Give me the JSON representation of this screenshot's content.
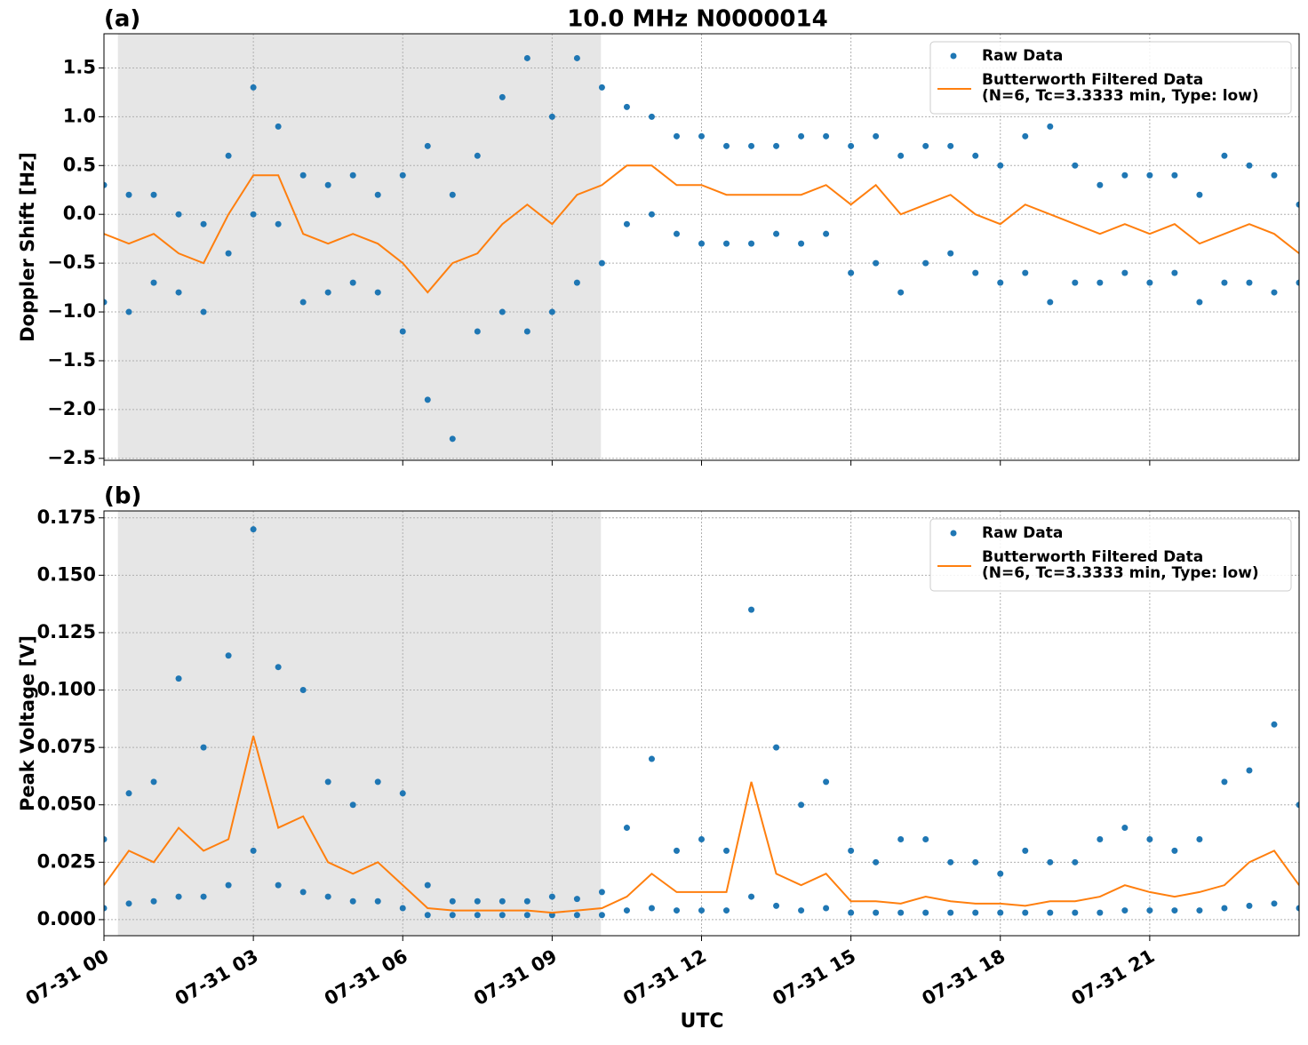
{
  "chart_data": [
    {
      "type": "scatter_line",
      "panel_label": "(a)",
      "title": "10.0 MHz N0000014",
      "y_label": "Doppler Shift [Hz]",
      "xlim": [
        0,
        24
      ],
      "ylim": [
        -2.52,
        1.85
      ],
      "yticks": [
        {
          "value": -2.5,
          "label": "−2.5"
        },
        {
          "value": -2.0,
          "label": "−2.0"
        },
        {
          "value": -1.5,
          "label": "−1.5"
        },
        {
          "value": -1.0,
          "label": "−1.0"
        },
        {
          "value": -0.5,
          "label": "−0.5"
        },
        {
          "value": 0,
          "label": "0.0"
        },
        0.5,
        {
          "value": 1.0,
          "label": "1.0"
        },
        1.5
      ],
      "grid": true,
      "legend": "upper right",
      "shaded_span": [
        0.28,
        9.98
      ],
      "shade_color": "#e6e6e6",
      "series": [
        {
          "name": "Raw Data",
          "kind": "scatter",
          "color": "#1f77b4",
          "x": [
            0,
            0.5,
            1,
            1.5,
            2,
            2.5,
            3,
            3.5,
            4,
            4.5,
            5,
            5.5,
            6,
            6.5,
            7,
            7.5,
            8,
            8.5,
            9,
            9.5,
            10,
            10.5,
            11,
            11.5,
            12,
            12.5,
            13,
            13.5,
            14,
            14.5,
            15,
            15.5,
            16,
            16.5,
            17,
            17.5,
            18,
            18.5,
            19,
            19.5,
            20,
            20.5,
            21,
            21.5,
            22,
            22.5,
            23,
            23.5,
            24,
            0,
            0.5,
            1,
            1.5,
            2,
            2.5,
            3,
            3.5,
            4,
            4.5,
            5,
            5.5,
            6,
            6.5,
            7,
            7.5,
            8,
            8.5,
            9,
            9.5,
            10,
            10.5,
            11,
            11.5,
            12,
            12.5,
            13,
            13.5,
            14,
            14.5,
            15,
            15.5,
            16,
            16.5,
            17,
            17.5,
            18,
            18.5,
            19,
            19.5,
            20,
            20.5,
            21,
            21.5,
            22,
            22.5,
            23,
            23.5,
            24
          ],
          "values": [
            0.3,
            0.2,
            0.2,
            0.0,
            -0.1,
            0.6,
            1.3,
            0.9,
            0.4,
            0.3,
            0.4,
            0.2,
            0.4,
            0.7,
            0.2,
            0.6,
            1.2,
            1.6,
            1.0,
            1.6,
            1.3,
            1.1,
            1.0,
            0.8,
            0.8,
            0.7,
            0.7,
            0.7,
            0.8,
            0.8,
            0.7,
            0.8,
            0.6,
            0.7,
            0.7,
            0.6,
            0.5,
            0.8,
            0.9,
            0.5,
            0.3,
            0.4,
            0.4,
            0.4,
            0.2,
            0.6,
            0.5,
            0.4,
            0.1,
            -0.9,
            -1.0,
            -0.7,
            -0.8,
            -1.0,
            -0.4,
            0.0,
            -0.1,
            -0.9,
            -0.8,
            -0.7,
            -0.8,
            -1.2,
            -1.9,
            -2.3,
            -1.2,
            -1.0,
            -1.2,
            -1.0,
            -0.7,
            -0.5,
            -0.1,
            0.0,
            -0.2,
            -0.3,
            -0.3,
            -0.3,
            -0.2,
            -0.3,
            -0.2,
            -0.6,
            -0.5,
            -0.8,
            -0.5,
            -0.4,
            -0.6,
            -0.7,
            -0.6,
            -0.9,
            -0.7,
            -0.7,
            -0.6,
            -0.7,
            -0.6,
            -0.9,
            -0.7,
            -0.7,
            -0.8,
            -0.7
          ]
        },
        {
          "name": "Butterworth Filtered Data\n(N=6, Tc=3.3333 min, Type: low)",
          "kind": "line",
          "color": "#ff7f0e",
          "x": [
            0,
            0.5,
            1,
            1.5,
            2,
            2.5,
            3,
            3.5,
            4,
            4.5,
            5,
            5.5,
            6,
            6.5,
            7,
            7.5,
            8,
            8.5,
            9,
            9.5,
            10,
            10.5,
            11,
            11.5,
            12,
            12.5,
            13,
            13.5,
            14,
            14.5,
            15,
            15.5,
            16,
            16.5,
            17,
            17.5,
            18,
            18.5,
            19,
            19.5,
            20,
            20.5,
            21,
            21.5,
            22,
            22.5,
            23,
            23.5,
            24
          ],
          "values": [
            -0.2,
            -0.3,
            -0.2,
            -0.4,
            -0.5,
            0.0,
            0.4,
            0.4,
            -0.2,
            -0.3,
            -0.2,
            -0.3,
            -0.5,
            -0.8,
            -0.5,
            -0.4,
            -0.1,
            0.1,
            -0.1,
            0.2,
            0.3,
            0.5,
            0.5,
            0.3,
            0.3,
            0.2,
            0.2,
            0.2,
            0.2,
            0.3,
            0.1,
            0.3,
            0.0,
            0.1,
            0.2,
            0.0,
            -0.1,
            0.1,
            0.0,
            -0.1,
            -0.2,
            -0.1,
            -0.2,
            -0.1,
            -0.3,
            -0.2,
            -0.1,
            -0.2,
            -0.4
          ]
        }
      ]
    },
    {
      "type": "scatter_line",
      "panel_label": "(b)",
      "y_label": "Peak Voltage [V]",
      "x_label": "UTC",
      "xlim": [
        0,
        24
      ],
      "ylim": [
        -0.007,
        0.178
      ],
      "xticks": [
        {
          "value": 0,
          "label": "07-31 00"
        },
        {
          "value": 3,
          "label": "07-31 03"
        },
        {
          "value": 6,
          "label": "07-31 06"
        },
        {
          "value": 9,
          "label": "07-31 09"
        },
        {
          "value": 12,
          "label": "07-31 12"
        },
        {
          "value": 15,
          "label": "07-31 15"
        },
        {
          "value": 18,
          "label": "07-31 18"
        },
        {
          "value": 21,
          "label": "07-31 21"
        }
      ],
      "yticks": [
        {
          "value": 0,
          "label": "0.000"
        },
        0.025,
        {
          "value": 0.05,
          "label": "0.050"
        },
        0.075,
        {
          "value": 0.1,
          "label": "0.100"
        },
        0.125,
        {
          "value": 0.15,
          "label": "0.150"
        },
        0.175
      ],
      "grid": true,
      "legend": "upper right",
      "shaded_span": [
        0.28,
        9.98
      ],
      "shade_color": "#e6e6e6",
      "series": [
        {
          "name": "Raw Data",
          "kind": "scatter",
          "color": "#1f77b4",
          "x": [
            0,
            0.5,
            1,
            1.5,
            2,
            2.5,
            3,
            3.5,
            4,
            4.5,
            5,
            5.5,
            6,
            6.5,
            7,
            7.5,
            8,
            8.5,
            9,
            9.5,
            10,
            10.5,
            11,
            11.5,
            12,
            12.5,
            13,
            13.5,
            14,
            14.5,
            15,
            15.5,
            16,
            16.5,
            17,
            17.5,
            18,
            18.5,
            19,
            19.5,
            20,
            20.5,
            21,
            21.5,
            22,
            22.5,
            23,
            23.5,
            24,
            0,
            0.5,
            1,
            1.5,
            2,
            2.5,
            3,
            3.5,
            4,
            4.5,
            5,
            5.5,
            6,
            6.5,
            7,
            7.5,
            8,
            8.5,
            9,
            9.5,
            10,
            10.5,
            11,
            11.5,
            12,
            12.5,
            13,
            13.5,
            14,
            14.5,
            15,
            15.5,
            16,
            16.5,
            17,
            17.5,
            18,
            18.5,
            19,
            19.5,
            20,
            20.5,
            21,
            21.5,
            22,
            22.5,
            23,
            23.5,
            24
          ],
          "values": [
            0.035,
            0.055,
            0.06,
            0.105,
            0.075,
            0.115,
            0.17,
            0.11,
            0.1,
            0.06,
            0.05,
            0.06,
            0.055,
            0.015,
            0.008,
            0.008,
            0.008,
            0.008,
            0.01,
            0.009,
            0.012,
            0.04,
            0.07,
            0.03,
            0.035,
            0.03,
            0.135,
            0.075,
            0.05,
            0.06,
            0.03,
            0.025,
            0.035,
            0.035,
            0.025,
            0.025,
            0.02,
            0.03,
            0.025,
            0.025,
            0.035,
            0.04,
            0.035,
            0.03,
            0.035,
            0.06,
            0.065,
            0.085,
            0.05,
            0.005,
            0.007,
            0.008,
            0.01,
            0.01,
            0.015,
            0.03,
            0.015,
            0.012,
            0.01,
            0.008,
            0.008,
            0.005,
            0.002,
            0.002,
            0.002,
            0.002,
            0.002,
            0.002,
            0.002,
            0.002,
            0.004,
            0.005,
            0.004,
            0.004,
            0.004,
            0.01,
            0.006,
            0.004,
            0.005,
            0.003,
            0.003,
            0.003,
            0.003,
            0.003,
            0.003,
            0.003,
            0.003,
            0.003,
            0.003,
            0.003,
            0.004,
            0.004,
            0.004,
            0.004,
            0.005,
            0.006,
            0.007,
            0.005
          ]
        },
        {
          "name": "Butterworth Filtered Data\n(N=6, Tc=3.3333 min, Type: low)",
          "kind": "line",
          "color": "#ff7f0e",
          "x": [
            0,
            0.5,
            1,
            1.5,
            2,
            2.5,
            3,
            3.5,
            4,
            4.5,
            5,
            5.5,
            6,
            6.5,
            7,
            7.5,
            8,
            8.5,
            9,
            9.5,
            10,
            10.5,
            11,
            11.5,
            12,
            12.5,
            13,
            13.5,
            14,
            14.5,
            15,
            15.5,
            16,
            16.5,
            17,
            17.5,
            18,
            18.5,
            19,
            19.5,
            20,
            20.5,
            21,
            21.5,
            22,
            22.5,
            23,
            23.5,
            24
          ],
          "values": [
            0.015,
            0.03,
            0.025,
            0.04,
            0.03,
            0.035,
            0.08,
            0.04,
            0.045,
            0.025,
            0.02,
            0.025,
            0.015,
            0.005,
            0.004,
            0.004,
            0.004,
            0.004,
            0.003,
            0.004,
            0.005,
            0.01,
            0.02,
            0.012,
            0.012,
            0.012,
            0.06,
            0.02,
            0.015,
            0.02,
            0.008,
            0.008,
            0.007,
            0.01,
            0.008,
            0.007,
            0.007,
            0.006,
            0.008,
            0.008,
            0.01,
            0.015,
            0.012,
            0.01,
            0.012,
            0.015,
            0.025,
            0.03,
            0.015
          ]
        }
      ]
    }
  ]
}
